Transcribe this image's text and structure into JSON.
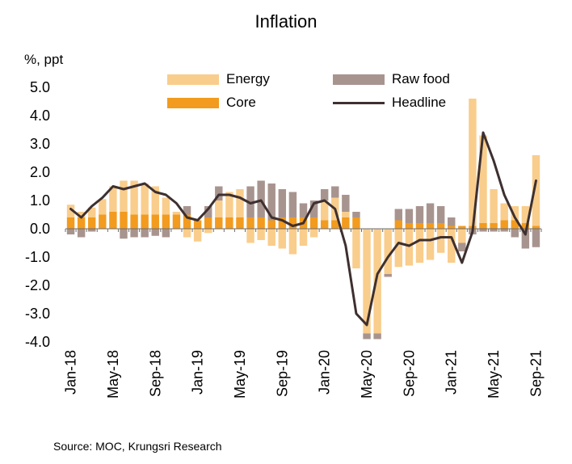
{
  "title": "Inflation",
  "unit_label": "%, ppt",
  "source": "Source:  MOC, Krungsri Research",
  "legend": {
    "energy": "Energy",
    "raw_food": "Raw food",
    "core": "Core",
    "headline": "Headline"
  },
  "colors": {
    "energy": "#F9CD8C",
    "raw_food": "#A8948F",
    "core": "#F29B1F",
    "headline": "#3E3030"
  },
  "chart_data": {
    "type": "bar",
    "stacked": true,
    "title": "Inflation",
    "ylabel": "%, ppt",
    "ylim": [
      -4.0,
      5.0
    ],
    "yticks": [
      "5.0",
      "4.0",
      "3.0",
      "2.0",
      "1.0",
      "0.0",
      "-1.0",
      "-2.0",
      "-3.0",
      "-4.0"
    ],
    "grid": false,
    "legend_position": "top",
    "x_tick_labels": [
      "Jan-18",
      "May-18",
      "Sep-18",
      "Jan-19",
      "May-19",
      "Sep-19",
      "Jan-20",
      "May-20",
      "Sep-20",
      "Jan-21",
      "May-21",
      "Sep-21"
    ],
    "categories": [
      "Jan-18",
      "Feb-18",
      "Mar-18",
      "Apr-18",
      "May-18",
      "Jun-18",
      "Jul-18",
      "Aug-18",
      "Sep-18",
      "Oct-18",
      "Nov-18",
      "Dec-18",
      "Jan-19",
      "Feb-19",
      "Mar-19",
      "Apr-19",
      "May-19",
      "Jun-19",
      "Jul-19",
      "Aug-19",
      "Sep-19",
      "Oct-19",
      "Nov-19",
      "Dec-19",
      "Jan-20",
      "Feb-20",
      "Mar-20",
      "Apr-20",
      "May-20",
      "Jun-20",
      "Jul-20",
      "Aug-20",
      "Sep-20",
      "Oct-20",
      "Nov-20",
      "Dec-20",
      "Jan-21",
      "Feb-21",
      "Mar-21",
      "Apr-21",
      "May-21",
      "Jun-21",
      "Jul-21",
      "Aug-21",
      "Sep-21"
    ],
    "series": [
      {
        "name": "Core",
        "kind": "bar",
        "values": [
          0.4,
          0.4,
          0.4,
          0.5,
          0.6,
          0.6,
          0.5,
          0.5,
          0.5,
          0.5,
          0.5,
          0.5,
          0.3,
          0.4,
          0.4,
          0.4,
          0.4,
          0.4,
          0.4,
          0.3,
          0.4,
          0.4,
          0.4,
          0.4,
          0.3,
          0.3,
          0.4,
          0.4,
          0.0,
          0.0,
          0.0,
          0.3,
          0.2,
          0.2,
          0.2,
          0.2,
          0.1,
          0.1,
          0.1,
          0.2,
          0.2,
          0.3,
          0.3,
          0.2,
          0.1
        ]
      },
      {
        "name": "Energy",
        "kind": "bar",
        "values": [
          0.45,
          0.2,
          0.35,
          0.55,
          0.9,
          1.1,
          1.2,
          1.1,
          1.0,
          0.6,
          0.1,
          -0.3,
          -0.45,
          -0.15,
          0.6,
          0.9,
          1.0,
          -0.5,
          -0.4,
          -0.6,
          -0.7,
          -0.9,
          -0.6,
          -0.3,
          0.7,
          0.8,
          0.2,
          -1.4,
          -3.7,
          -3.7,
          -1.6,
          -1.35,
          -1.3,
          -1.2,
          -1.1,
          -0.85,
          -1.2,
          -0.5,
          4.5,
          3.1,
          1.2,
          0.6,
          0.5,
          0.6,
          2.5
        ]
      },
      {
        "name": "Raw food",
        "kind": "bar",
        "values": [
          -0.2,
          -0.3,
          -0.1,
          0.0,
          0.0,
          -0.35,
          -0.3,
          -0.3,
          -0.25,
          -0.3,
          0.0,
          0.3,
          0.0,
          0.4,
          0.5,
          0.0,
          0.0,
          1.1,
          1.3,
          1.3,
          1.0,
          0.9,
          0.5,
          0.6,
          0.4,
          0.4,
          0.6,
          0.2,
          -0.2,
          -0.2,
          -0.1,
          0.4,
          0.5,
          0.6,
          0.7,
          0.6,
          0.3,
          -0.3,
          -0.2,
          -0.1,
          -0.1,
          -0.1,
          -0.3,
          -0.7,
          -0.65
        ]
      },
      {
        "name": "Headline",
        "kind": "line",
        "values": [
          0.7,
          0.4,
          0.8,
          1.1,
          1.5,
          1.4,
          1.5,
          1.6,
          1.3,
          1.2,
          0.9,
          0.4,
          0.3,
          0.7,
          1.2,
          1.2,
          1.1,
          0.9,
          1.0,
          0.4,
          0.3,
          0.1,
          0.2,
          0.9,
          1.0,
          0.7,
          -0.6,
          -3.0,
          -3.4,
          -1.6,
          -1.0,
          -0.5,
          -0.6,
          -0.4,
          -0.4,
          -0.3,
          -0.3,
          -1.2,
          -0.1,
          3.4,
          2.4,
          1.2,
          0.4,
          -0.2,
          1.7
        ]
      }
    ]
  }
}
